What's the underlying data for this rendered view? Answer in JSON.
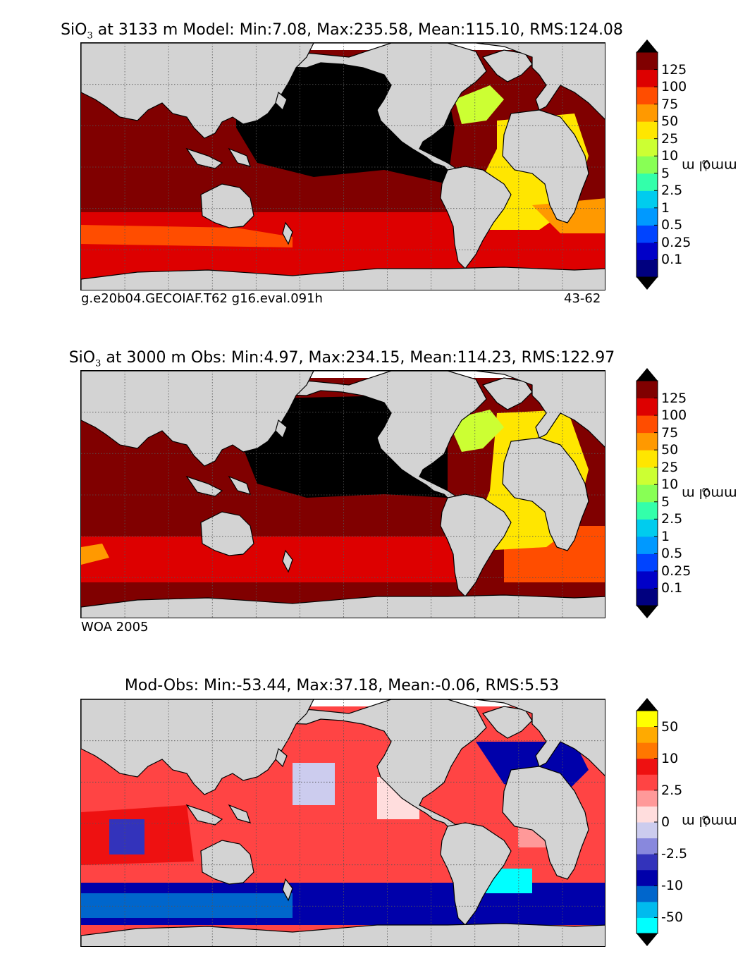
{
  "chart_data": [
    {
      "type": "heatmap",
      "title_main": "SiO",
      "title_sub": "3",
      "title_rest": " at 3133 m Model: Min:7.08, Max:235.58, Mean:115.10, RMS:124.08",
      "footer_left": "g.e20b04.GECOIAF.T62 g16.eval.091h",
      "footer_right": "43-62",
      "colorbar_label": "mmol m",
      "colorbar_exp": "−3",
      "colorbar_ticks": [
        "0.1",
        "0.25",
        "0.5",
        "1",
        "2.5",
        "5",
        "10",
        "25",
        "50",
        "75",
        "100",
        "125"
      ],
      "colors": [
        "#00007f",
        "#0000c8",
        "#0044ff",
        "#0099ff",
        "#00ccee",
        "#33ffaa",
        "#88ff55",
        "#ccff33",
        "#ffe600",
        "#ff9900",
        "#ff4d00",
        "#dd0000",
        "#800000"
      ],
      "stats": {
        "min": 7.08,
        "max": 235.58,
        "mean": 115.1,
        "rms": 124.08
      }
    },
    {
      "type": "heatmap",
      "title_main": "SiO",
      "title_sub": "3",
      "title_rest": " at 3000 m Obs: Min:4.97, Max:234.15, Mean:114.23, RMS:122.97",
      "footer_left": "WOA 2005",
      "footer_right": "",
      "colorbar_label": "mmol m",
      "colorbar_exp": "−3",
      "colorbar_ticks": [
        "0.1",
        "0.25",
        "0.5",
        "1",
        "2.5",
        "5",
        "10",
        "25",
        "50",
        "75",
        "100",
        "125"
      ],
      "colors": [
        "#00007f",
        "#0000c8",
        "#0044ff",
        "#0099ff",
        "#00ccee",
        "#33ffaa",
        "#88ff55",
        "#ccff33",
        "#ffe600",
        "#ff9900",
        "#ff4d00",
        "#dd0000",
        "#800000"
      ],
      "stats": {
        "min": 4.97,
        "max": 234.15,
        "mean": 114.23,
        "rms": 122.97
      }
    },
    {
      "type": "heatmap",
      "title_main": "Mod-Obs: Min:-53.44, Max:37.18, Mean:-0.06, RMS:5.53",
      "title_sub": "",
      "title_rest": "",
      "footer_left": "",
      "footer_right": "",
      "colorbar_label": "mmol m",
      "colorbar_exp": "−3",
      "colorbar_ticks": [
        "-50",
        "-10",
        "-2.5",
        "0",
        "2.5",
        "10",
        "50"
      ],
      "colors": [
        "#00ffff",
        "#00bbee",
        "#0066cc",
        "#0000aa",
        "#3333bb",
        "#8888dd",
        "#ccccee",
        "#ffdddd",
        "#ff9999",
        "#ff4444",
        "#ee1111",
        "#ff7700",
        "#ffaa00",
        "#ffff00"
      ],
      "stats": {
        "min": -53.44,
        "max": 37.18,
        "mean": -0.06,
        "rms": 5.53
      }
    }
  ]
}
